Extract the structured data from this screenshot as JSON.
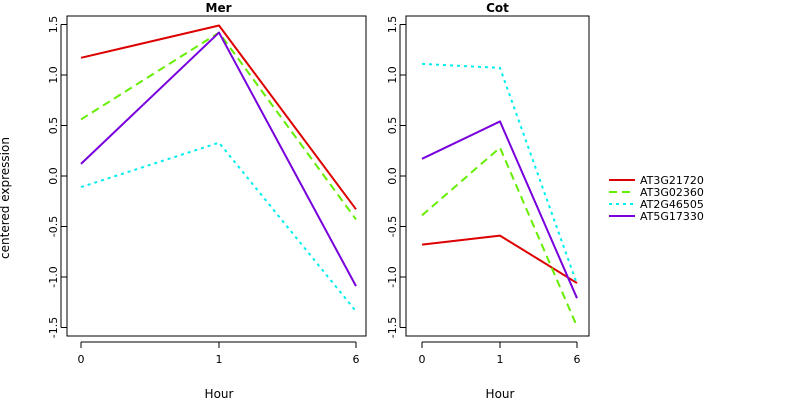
{
  "chart_data": [
    {
      "type": "line",
      "title": "Mer",
      "xlabel": "Hour",
      "ylabel": "centered expression",
      "categories": [
        "0",
        "1",
        "6"
      ],
      "ylim": [
        -1.6,
        1.6
      ],
      "yticks": [
        "-1.5",
        "-1.0",
        "-0.5",
        "0.0",
        "0.5",
        "1.0",
        "1.5"
      ],
      "series": [
        {
          "name": "AT3G21720",
          "color": "#dd0000",
          "dash": "solid",
          "values": [
            1.17,
            1.49,
            -0.33
          ]
        },
        {
          "name": "AT3G02360",
          "color": "#66ee00",
          "dash": "dashed",
          "values": [
            0.56,
            1.42,
            -0.43
          ]
        },
        {
          "name": "AT2G46505",
          "color": "#00eeee",
          "dash": "dotted",
          "values": [
            -0.11,
            0.33,
            -1.34
          ]
        },
        {
          "name": "AT5G17330",
          "color": "#7700dd",
          "dash": "solid",
          "values": [
            0.12,
            1.42,
            -1.09
          ]
        }
      ]
    },
    {
      "type": "line",
      "title": "Cot",
      "xlabel": "Hour",
      "ylabel": "",
      "categories": [
        "0",
        "1",
        "6"
      ],
      "ylim": [
        -1.6,
        1.6
      ],
      "yticks": [
        "-1.5",
        "-1.0",
        "-0.5",
        "0.0",
        "0.5",
        "1.0",
        "1.5"
      ],
      "series": [
        {
          "name": "AT3G21720",
          "color": "#dd0000",
          "dash": "solid",
          "values": [
            -0.68,
            -0.59,
            -1.06
          ]
        },
        {
          "name": "AT3G02360",
          "color": "#66ee00",
          "dash": "dashed",
          "values": [
            -0.39,
            0.28,
            -1.49
          ]
        },
        {
          "name": "AT2G46505",
          "color": "#00eeee",
          "dash": "dotted",
          "values": [
            1.11,
            1.07,
            -1.07
          ]
        },
        {
          "name": "AT5G17330",
          "color": "#7700dd",
          "dash": "solid",
          "values": [
            0.17,
            0.54,
            -1.21
          ]
        }
      ]
    }
  ],
  "legend": {
    "placement": "right",
    "entries": [
      {
        "name": "AT3G21720",
        "color": "#dd0000",
        "dash": "solid"
      },
      {
        "name": "AT3G02360",
        "color": "#66ee00",
        "dash": "dashed"
      },
      {
        "name": "AT2G46505",
        "color": "#00eeee",
        "dash": "dotted"
      },
      {
        "name": "AT5G17330",
        "color": "#7700dd",
        "dash": "solid"
      }
    ]
  }
}
